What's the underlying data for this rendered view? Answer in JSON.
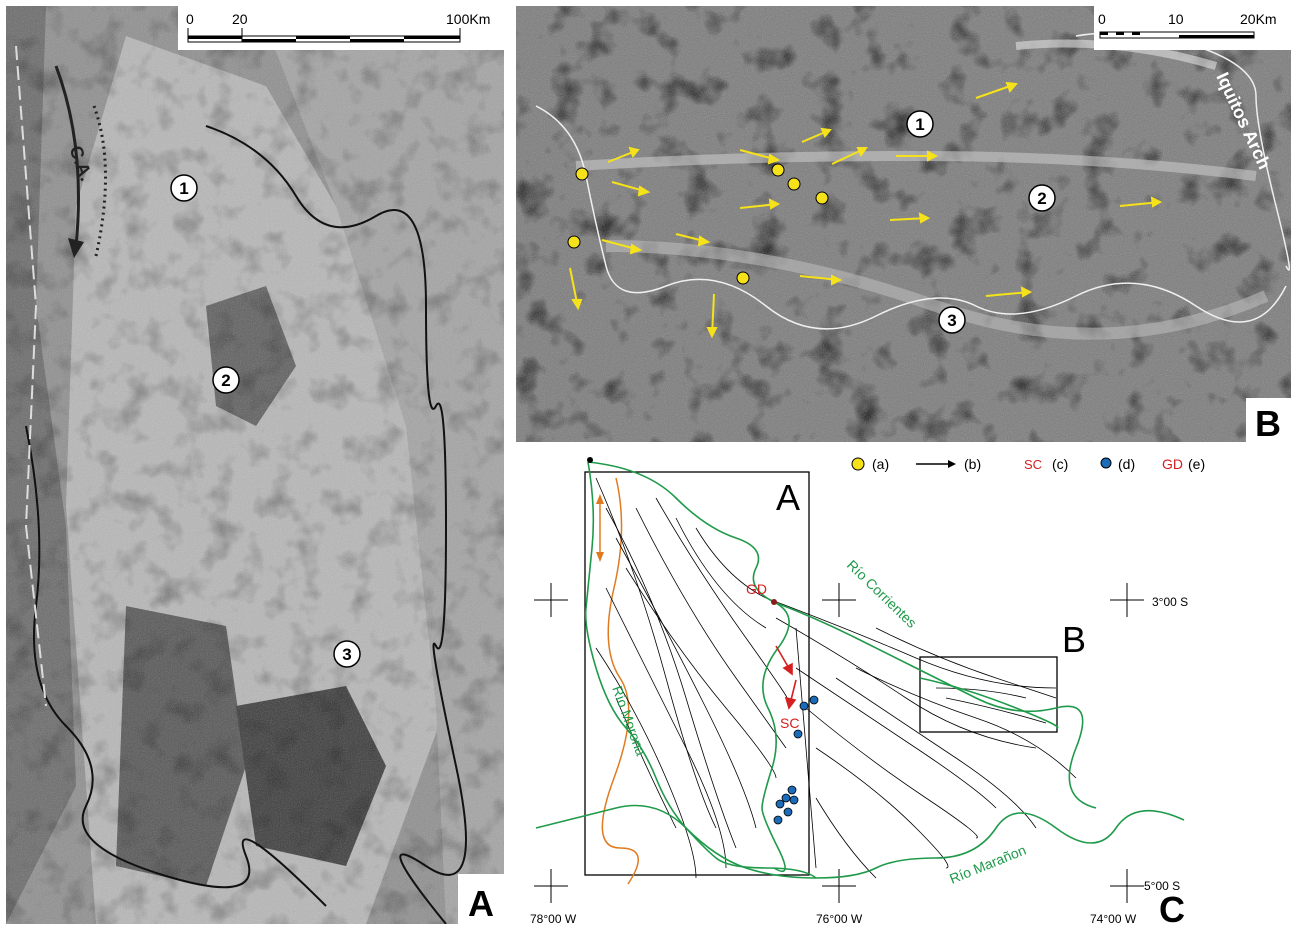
{
  "panels": {
    "a": {
      "letter": "A",
      "scale_labels": [
        "0",
        "20",
        "100Km"
      ],
      "annotation": "C.A.",
      "markers": [
        "1",
        "2",
        "3"
      ]
    },
    "b": {
      "letter": "B",
      "scale_labels": [
        "0",
        "10",
        "20Km"
      ],
      "annotation": "Iquitos Arch",
      "markers": [
        "1",
        "2",
        "3"
      ]
    },
    "c": {
      "letter": "C",
      "box_labels": [
        "A",
        "B"
      ],
      "legend": [
        {
          "symbol": "yellow-dot",
          "text": "(a)"
        },
        {
          "symbol": "arrow",
          "text": "(b)"
        },
        {
          "symbol": "SC",
          "text": "(c)"
        },
        {
          "symbol": "blue-dot",
          "text": "(d)"
        },
        {
          "symbol": "GD",
          "text": "(e)"
        }
      ],
      "rivers": [
        "Río Corrientes",
        "Río Morona",
        "Río Marañon"
      ],
      "point_labels": {
        "gd": "GD",
        "sc": "SC"
      },
      "coords": {
        "lat_north": "3°00 S",
        "lat_south": "5°00 S",
        "lon_west": "78°00 W",
        "lon_mid": "76°00 W",
        "lon_east": "74°00 W"
      }
    }
  },
  "colors": {
    "river_green": "#1f9a4a",
    "orange_line": "#e07a1f",
    "red": "#d42020",
    "yellow": "#f5e21a",
    "blue": "#1b6cb8"
  }
}
